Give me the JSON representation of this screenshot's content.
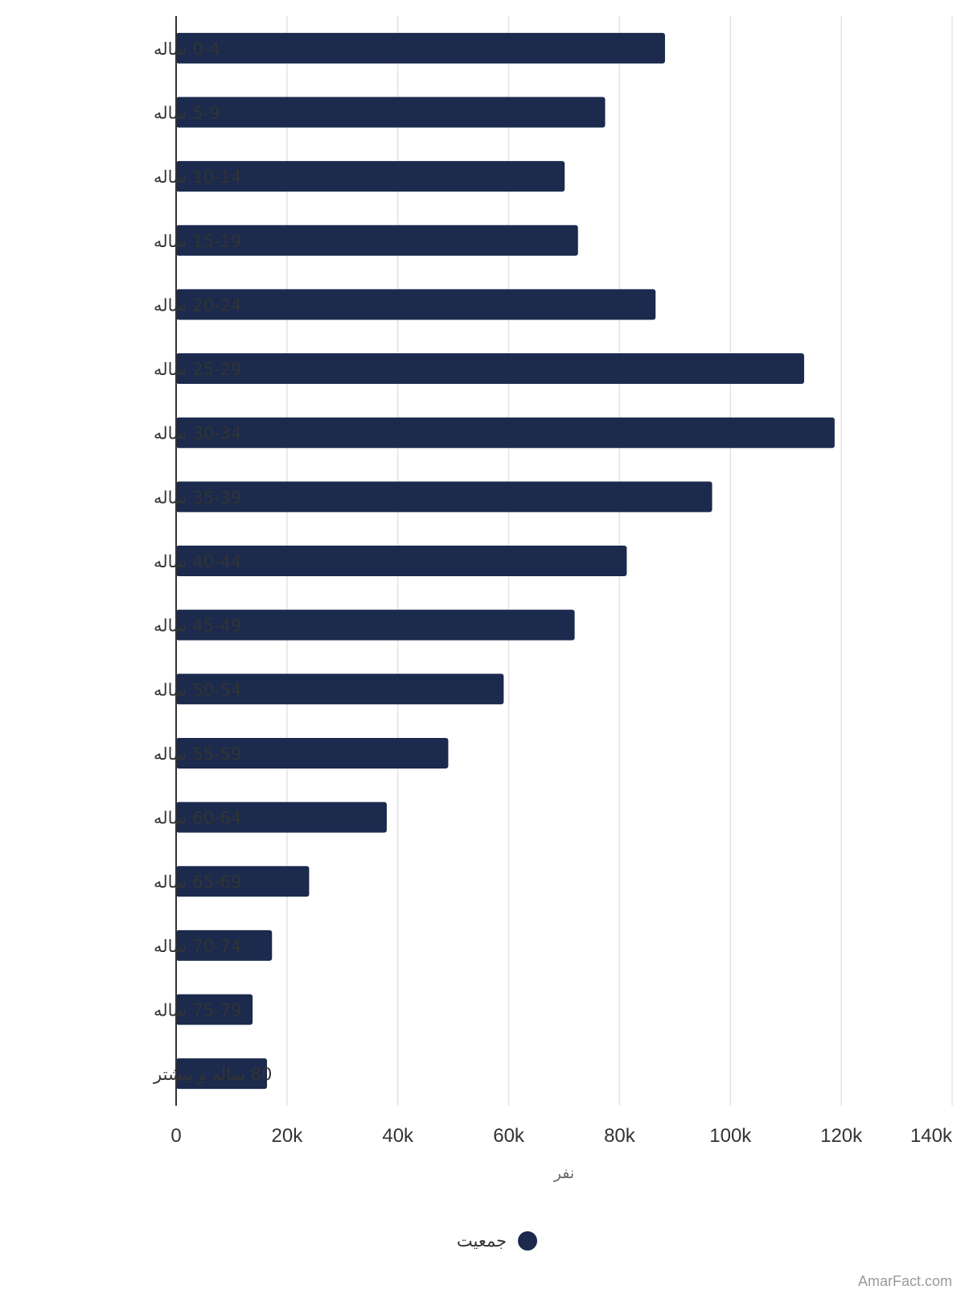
{
  "chart_data": {
    "type": "bar",
    "orientation": "horizontal",
    "categories": [
      "0-4 ساله",
      "5-9 ساله",
      "10-14 ساله",
      "15-19 ساله",
      "20-24 ساله",
      "25-29 ساله",
      "30-34 ساله",
      "35-39 ساله",
      "40-44 ساله",
      "45-49 ساله",
      "50-54 ساله",
      "55-59 ساله",
      "60-64 ساله",
      "65-69 ساله",
      "70-74 ساله",
      "75-79 ساله",
      "80 ساله و بیشتر"
    ],
    "series": [
      {
        "name": "جمعیت",
        "color": "#1b2a4d",
        "values": [
          88200,
          77400,
          70100,
          72500,
          86500,
          113300,
          118800,
          96700,
          81300,
          71900,
          59100,
          49100,
          38000,
          24000,
          17300,
          13800,
          16400
        ]
      }
    ],
    "xlabel": "نفر",
    "ylabel": "",
    "xlim": [
      0,
      140000
    ],
    "x_ticks": [
      0,
      20000,
      40000,
      60000,
      80000,
      100000,
      120000,
      140000
    ],
    "x_tick_labels": [
      "0",
      "20k",
      "40k",
      "60k",
      "80k",
      "100k",
      "120k",
      "140k"
    ],
    "grid": true,
    "legend_position": "bottom"
  },
  "credit": "AmarFact.com"
}
